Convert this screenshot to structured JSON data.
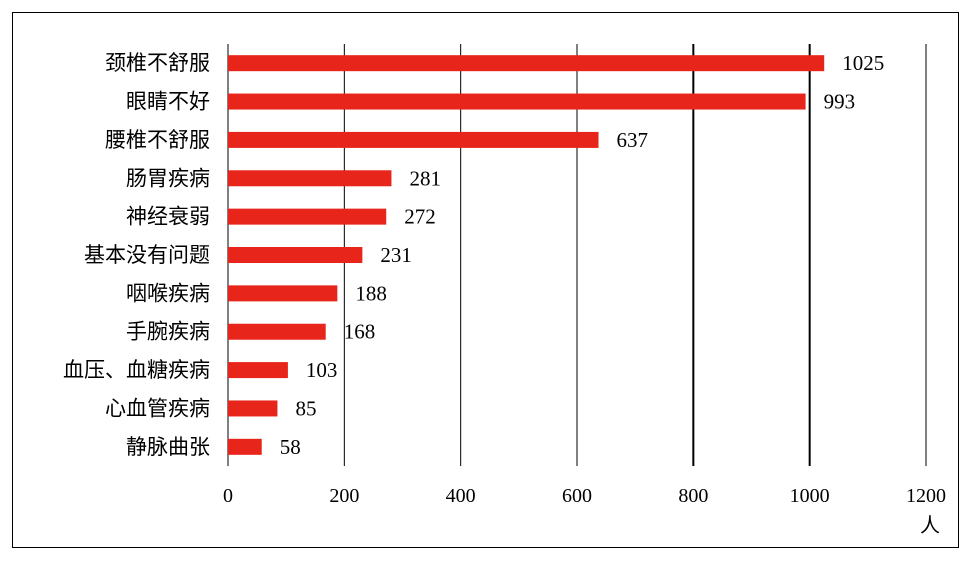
{
  "chart_data": {
    "type": "bar",
    "orientation": "horizontal",
    "categories": [
      "颈椎不舒服",
      "眼睛不好",
      "腰椎不舒服",
      "肠胃疾病",
      "神经衰弱",
      "基本没有问题",
      "咽喉疾病",
      "手腕疾病",
      "血压、血糖疾病",
      "心血管疾病",
      "静脉曲张"
    ],
    "values": [
      1025,
      993,
      637,
      281,
      272,
      231,
      188,
      168,
      103,
      85,
      58
    ],
    "xlim": [
      0,
      1200
    ],
    "xticks": [
      0,
      200,
      400,
      600,
      800,
      1000,
      1200
    ],
    "xtick_labels": [
      "0",
      "200",
      "400",
      "600",
      "800",
      "1000",
      "1200"
    ],
    "x_unit": "人",
    "title": "",
    "xlabel": "",
    "ylabel": "",
    "grid": "vertical",
    "legend": "none",
    "bar_color": "#e8251b"
  }
}
